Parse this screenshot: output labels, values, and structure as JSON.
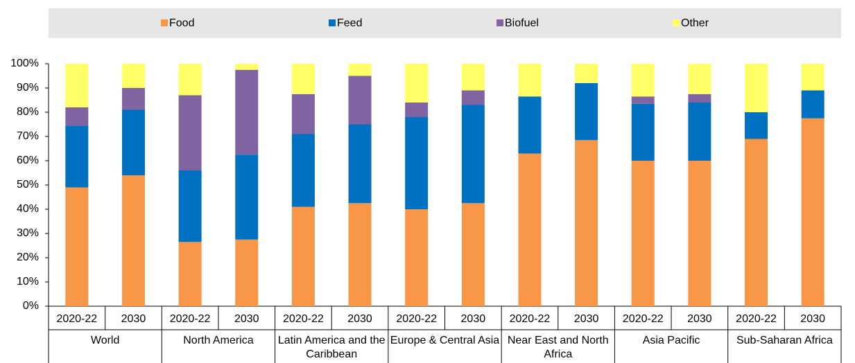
{
  "chart_data": {
    "type": "stacked_bar",
    "categories": [
      "2020-22",
      "2030",
      "2020-22",
      "2030",
      "2020-22",
      "2030",
      "2020-22",
      "2030",
      "2020-22",
      "2030",
      "2020-22",
      "2030",
      "2020-22",
      "2030"
    ],
    "groups": [
      "World",
      "North America",
      "Latin America and the Caribbean",
      "Europe & Central Asia",
      "Near East and North Africa",
      "Asia Pacific",
      "Sub-Saharan Africa"
    ],
    "series": [
      {
        "name": "Food",
        "color": "#f79646",
        "values": [
          49,
          54,
          26.5,
          27.5,
          41,
          42.5,
          40,
          42.5,
          63,
          68.5,
          60,
          60,
          69,
          77.5
        ]
      },
      {
        "name": "Feed",
        "color": "#0070c0",
        "values": [
          25.5,
          27,
          29.5,
          35,
          30,
          32.5,
          38,
          40.5,
          23.5,
          23.5,
          23.5,
          24,
          11,
          11.5
        ]
      },
      {
        "name": "Biofuel",
        "color": "#8064a2",
        "values": [
          7.5,
          9,
          31,
          35,
          16.5,
          20,
          6,
          6,
          0,
          0,
          3,
          3.5,
          0,
          0
        ]
      },
      {
        "name": "Other",
        "color": "#ffff66",
        "values": [
          18,
          10,
          13,
          2.5,
          12.5,
          5,
          16,
          11,
          13.5,
          8,
          13.5,
          12.5,
          20,
          11
        ]
      }
    ],
    "ylim": [
      0,
      100
    ],
    "yticks": [
      {
        "value": 0,
        "label": "0%"
      },
      {
        "value": 10,
        "label": "10%"
      },
      {
        "value": 20,
        "label": "20%"
      },
      {
        "value": 30,
        "label": "30%"
      },
      {
        "value": 40,
        "label": "40%"
      },
      {
        "value": 50,
        "label": "50%"
      },
      {
        "value": 60,
        "label": "60%"
      },
      {
        "value": 70,
        "label": "70%"
      },
      {
        "value": 80,
        "label": "80%"
      },
      {
        "value": 90,
        "label": "90%"
      },
      {
        "value": 100,
        "label": "100%"
      }
    ],
    "legend": "top"
  }
}
